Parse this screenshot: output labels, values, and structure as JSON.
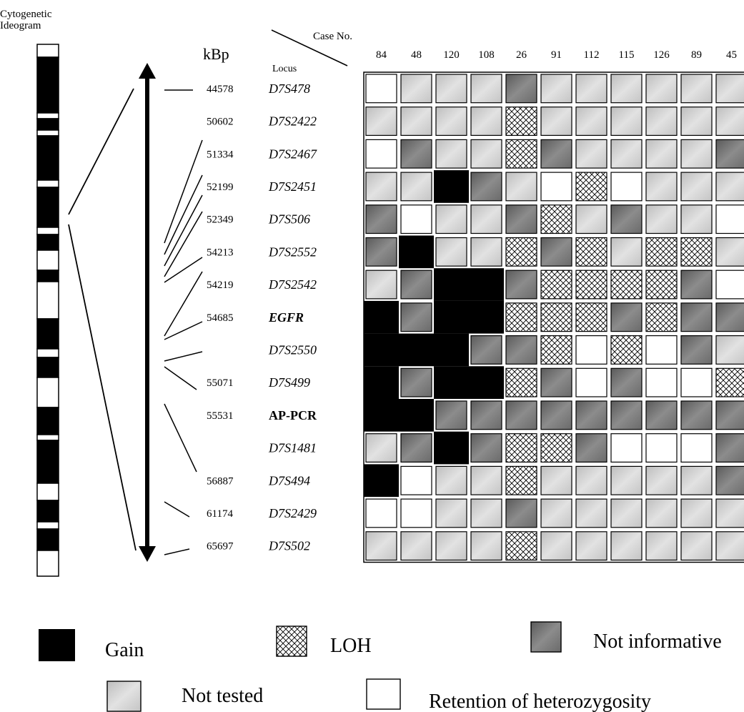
{
  "ideogram_title_lines": [
    "Cytogenetic",
    "Ideogram"
  ],
  "case_header": "Case No.",
  "locus_header": "Locus",
  "kbp_header": "kBp",
  "cases": [
    "84",
    "48",
    "120",
    "108",
    "26",
    "91",
    "112",
    "115",
    "126",
    "89",
    "45"
  ],
  "rows": [
    {
      "kbp": "44578",
      "locus": "D7S478",
      "italic": true
    },
    {
      "kbp": "50602",
      "locus": "D7S2422",
      "italic": true
    },
    {
      "kbp": "51334",
      "locus": "D7S2467",
      "italic": true
    },
    {
      "kbp": "52199",
      "locus": "D7S2451",
      "italic": true
    },
    {
      "kbp": "52349",
      "locus": "D7S506",
      "italic": true
    },
    {
      "kbp": "54213",
      "locus": "D7S2552",
      "italic": true
    },
    {
      "kbp": "54219",
      "locus": "D7S2542",
      "italic": true
    },
    {
      "kbp": "54685",
      "locus": "EGFR",
      "italic": true,
      "bold": true
    },
    {
      "kbp": "",
      "locus": "D7S2550",
      "italic": true
    },
    {
      "kbp": "55071",
      "locus": "D7S499",
      "italic": true
    },
    {
      "kbp": "55531",
      "locus": "AP-PCR",
      "italic": false,
      "bold": true
    },
    {
      "kbp": "",
      "locus": "D7S1481",
      "italic": true
    },
    {
      "kbp": "56887",
      "locus": "D7S494",
      "italic": true
    },
    {
      "kbp": "61174",
      "locus": "D7S2429",
      "italic": true
    },
    {
      "kbp": "65697",
      "locus": "D7S502",
      "italic": true
    }
  ],
  "status_grid": [
    [
      "R",
      "T",
      "T",
      "T",
      "N",
      "T",
      "T",
      "T",
      "T",
      "T",
      "T"
    ],
    [
      "T",
      "T",
      "T",
      "T",
      "L",
      "T",
      "T",
      "T",
      "T",
      "T",
      "T"
    ],
    [
      "R",
      "N",
      "T",
      "T",
      "L",
      "N",
      "T",
      "T",
      "T",
      "T",
      "N"
    ],
    [
      "T",
      "T",
      "G",
      "N",
      "T",
      "R",
      "L",
      "R",
      "T",
      "T",
      "T"
    ],
    [
      "N",
      "R",
      "T",
      "T",
      "N",
      "L",
      "T",
      "N",
      "T",
      "T",
      "R"
    ],
    [
      "N",
      "G",
      "T",
      "T",
      "L",
      "N",
      "L",
      "T",
      "L",
      "L",
      "T"
    ],
    [
      "T",
      "N",
      "G",
      "G",
      "N",
      "L",
      "L",
      "L",
      "L",
      "N",
      "R"
    ],
    [
      "G",
      "N",
      "G",
      "G",
      "L",
      "L",
      "L",
      "N",
      "L",
      "N",
      "N"
    ],
    [
      "G",
      "G",
      "G",
      "N",
      "N",
      "L",
      "R",
      "L",
      "R",
      "N",
      "T"
    ],
    [
      "G",
      "N",
      "G",
      "G",
      "L",
      "N",
      "R",
      "N",
      "R",
      "R",
      "L"
    ],
    [
      "G",
      "G",
      "N",
      "N",
      "N",
      "N",
      "N",
      "N",
      "N",
      "N",
      "N"
    ],
    [
      "T",
      "N",
      "G",
      "N",
      "L",
      "L",
      "N",
      "R",
      "R",
      "R",
      "N"
    ],
    [
      "G",
      "R",
      "T",
      "T",
      "L",
      "T",
      "T",
      "T",
      "T",
      "T",
      "N"
    ],
    [
      "R",
      "R",
      "T",
      "T",
      "N",
      "T",
      "T",
      "T",
      "T",
      "T",
      "T"
    ],
    [
      "T",
      "T",
      "T",
      "T",
      "L",
      "T",
      "T",
      "T",
      "T",
      "T",
      "T"
    ]
  ],
  "legend": [
    {
      "code": "G",
      "label": "Gain"
    },
    {
      "code": "L",
      "label": "LOH"
    },
    {
      "code": "N",
      "label": "Not informative"
    },
    {
      "code": "T",
      "label": "Not tested"
    },
    {
      "code": "R",
      "label": "Retention of heterozygosity"
    }
  ],
  "colors": {
    "gain": "#000000",
    "loh_line": "#000000",
    "not_informative": "#6e6e6e",
    "not_tested": "#c8c8c8",
    "retention": "#ffffff"
  }
}
